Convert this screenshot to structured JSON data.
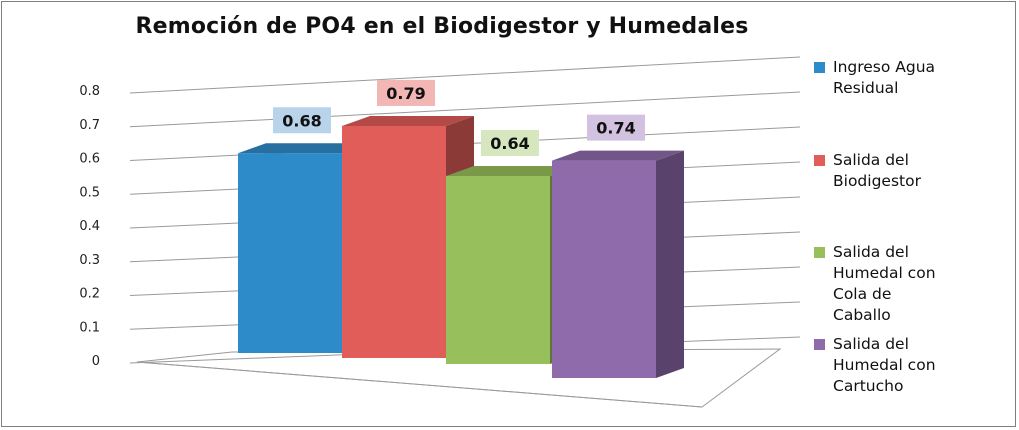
{
  "chart_data": {
    "type": "bar",
    "title": "Remoción de PO4 en el Biodigestor y Humedales",
    "xlabel": "",
    "ylabel": "",
    "ylim": [
      0,
      0.8
    ],
    "yticks": [
      "0",
      "0.1",
      "0.2",
      "0.3",
      "0.4",
      "0.5",
      "0.6",
      "0.7",
      "0.8"
    ],
    "grid": true,
    "legend_position": "right",
    "categories": [
      ""
    ],
    "series": [
      {
        "name": "Ingreso Agua Residual",
        "legend_text": "Ingreso Agua\nResidual",
        "value": 0.68,
        "color": "#2e8bc9",
        "label_bg": "#b8d3ea"
      },
      {
        "name": "Salida del Biodigestor",
        "legend_text": "Salida del\nBiodigestor",
        "value": 0.79,
        "color": "#e05d5a",
        "label_bg": "#f2b6b5"
      },
      {
        "name": "Salida del Humedal con Cola de Caballo",
        "legend_text": "Salida del\nHumedal con\nCola de\nCaballo",
        "value": 0.64,
        "color": "#97bf5b",
        "label_bg": "#d6e6bf"
      },
      {
        "name": "Salida del Humedal con Cartucho",
        "legend_text": "Salida del\nHumedal con\nCartucho",
        "value": 0.74,
        "color": "#8f6bac",
        "label_bg": "#d2c2e0"
      }
    ],
    "data_labels": [
      "0.68",
      "0.79",
      "0.64",
      "0.74"
    ]
  }
}
